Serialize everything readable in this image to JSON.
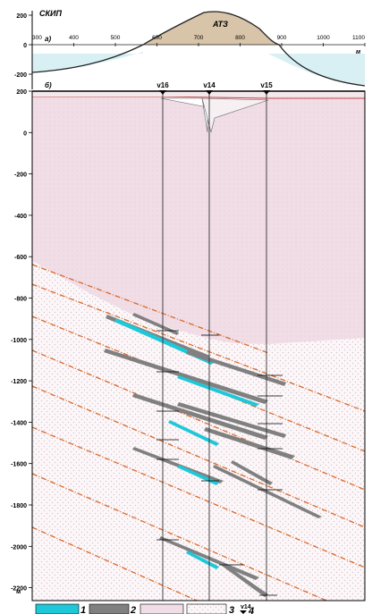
{
  "panel_a": {
    "label": "а)",
    "unit_label": "СКИП",
    "anomaly_label": "АТЗ",
    "x_unit": "м",
    "y_ticks": [
      "200",
      "0",
      "-200"
    ],
    "x_ticks": [
      "300",
      "400",
      "500",
      "600",
      "700",
      "800",
      "900",
      "1000",
      "1100"
    ]
  },
  "panel_b": {
    "label": "б)",
    "y_unit": "м",
    "y_ticks": [
      "200",
      "0",
      "-200",
      "-400",
      "-600",
      "-800",
      "-1000",
      "-1200",
      "-1400",
      "-1600",
      "-1800",
      "-2000",
      "-2200"
    ],
    "wells": [
      {
        "name": "v16"
      },
      {
        "name": "v14"
      },
      {
        "name": "v15"
      }
    ]
  },
  "legend": [
    {
      "num": "1",
      "color": "#1ec8d8"
    },
    {
      "num": "2",
      "color": "#808080"
    },
    {
      "num": "3",
      "color": "#f0dde6"
    },
    {
      "num": "4",
      "well": "v14"
    }
  ],
  "colors": {
    "anomaly_fill": "#d8c4a8",
    "negative_fill": "#d8f0f4",
    "host_rock": "#f0dde6",
    "cover": "#e9c4d4",
    "fault": "#d86a2a",
    "ore_cyan": "#1ec8d8",
    "ore_gray": "#808080"
  }
}
